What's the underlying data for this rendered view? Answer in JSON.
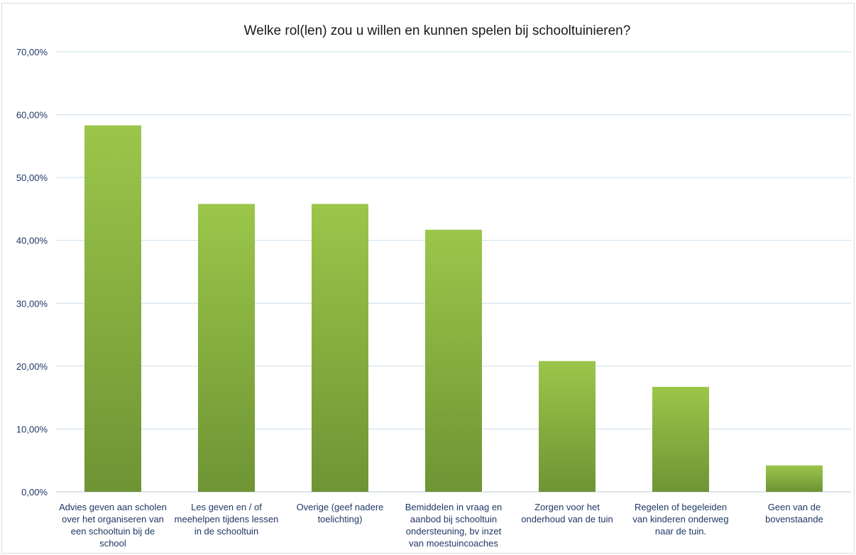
{
  "chart_data": {
    "type": "bar",
    "title": "Welke rol(len) zou u willen en kunnen spelen bij schooltuinieren?",
    "xlabel": "",
    "ylabel": "",
    "ylim": [
      0,
      70
    ],
    "yticks": [
      0,
      10,
      20,
      30,
      40,
      50,
      60,
      70
    ],
    "ytick_labels": [
      "0,00%",
      "10,00%",
      "20,00%",
      "30,00%",
      "40,00%",
      "50,00%",
      "60,00%",
      "70,00%"
    ],
    "grid": true,
    "legend": "none",
    "categories": [
      [
        "Advies geven aan scholen",
        "over het organiseren van",
        "een schooltuin bij de",
        "school"
      ],
      [
        "Les geven en / of",
        "meehelpen tijdens lessen",
        "in de schooltuin"
      ],
      [
        "Overige (geef nadere",
        "toelichting)"
      ],
      [
        "Bemiddelen in vraag en",
        "aanbod bij schooltuin",
        "ondersteuning, bv inzet",
        "van moestuincoaches"
      ],
      [
        "Zorgen voor het",
        "onderhoud van de tuin"
      ],
      [
        "Regelen of begeleiden",
        "van kinderen onderweg",
        "naar de tuin."
      ],
      [
        "Geen van de",
        "bovenstaande"
      ]
    ],
    "values": [
      58.3,
      45.8,
      45.8,
      41.7,
      20.8,
      16.7,
      4.2
    ],
    "colors": {
      "bar_top": "#9bc64a",
      "bar_bottom": "#6e9434",
      "grid": "#c9dcea",
      "text": "#1f3864"
    }
  }
}
